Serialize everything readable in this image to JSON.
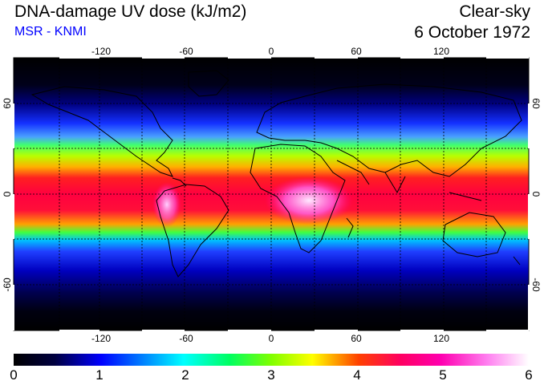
{
  "header": {
    "title": "DNA-damage UV dose (kJ/m2)",
    "subtitle": "MSR - KNMI",
    "sky_condition": "Clear-sky",
    "date": "6 October 1972"
  },
  "map": {
    "projection": "equirectangular",
    "lon_range": [
      -180,
      180
    ],
    "lat_range": [
      -90,
      90
    ],
    "lon_ticks": [
      "-120",
      "-60",
      "0",
      "60",
      "120"
    ],
    "lat_ticks": [
      "60",
      "0",
      "-60"
    ],
    "gridlines": "dashed, every 30 degrees",
    "features": [
      "coastlines",
      "continent outlines"
    ],
    "field_description_bands": [
      {
        "lat": 90,
        "dose": 0.0
      },
      {
        "lat": 60,
        "dose": 0.6
      },
      {
        "lat": 40,
        "dose": 1.2
      },
      {
        "lat": 30,
        "dose": 2.2
      },
      {
        "lat": 20,
        "dose": 3.2
      },
      {
        "lat": 10,
        "dose": 4.2
      },
      {
        "lat": 0,
        "dose": 4.6
      },
      {
        "lat": -10,
        "dose": 4.5
      },
      {
        "lat": -20,
        "dose": 3.8
      },
      {
        "lat": -30,
        "dose": 2.0
      },
      {
        "lat": -40,
        "dose": 1.1
      },
      {
        "lat": -60,
        "dose": 0.4
      },
      {
        "lat": -90,
        "dose": 0.0
      }
    ]
  },
  "colorbar": {
    "labels": [
      "0",
      "1",
      "2",
      "3",
      "4",
      "5",
      "6"
    ],
    "min": 0,
    "max": 6,
    "colors": [
      "#000000",
      "#0000ff",
      "#00ffff",
      "#00ff00",
      "#ffff00",
      "#ff0000",
      "#ff00ff",
      "#ffffff"
    ]
  }
}
